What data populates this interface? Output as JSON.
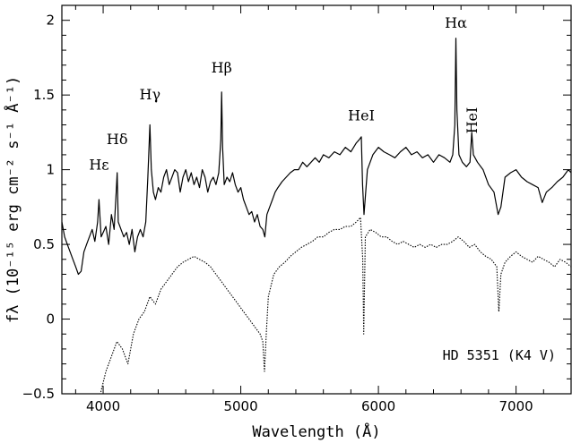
{
  "chart_data": {
    "type": "line",
    "title": "",
    "xlabel": "Wavelength (Å)",
    "ylabel": "fλ (10⁻¹⁵ erg cm⁻² s⁻¹ Å⁻¹)",
    "xlim": [
      3700,
      7400
    ],
    "ylim": [
      -0.5,
      2.1
    ],
    "x_ticks": [
      4000,
      5000,
      6000,
      7000
    ],
    "x_tick_labels": [
      "4000",
      "5000",
      "6000",
      "7000"
    ],
    "y_ticks": [
      -0.5,
      0,
      0.5,
      1,
      1.5,
      2
    ],
    "y_tick_labels": [
      "−0.5",
      "0",
      "0.5",
      "1",
      "1.5",
      "2"
    ],
    "grid": false,
    "annotation": "HD 5351 (K4 V)",
    "line_labels": [
      {
        "text": "Hε",
        "wavelength": 3970,
        "level": 1.0
      },
      {
        "text": "Hδ",
        "wavelength": 4102,
        "level": 1.17
      },
      {
        "text": "Hγ",
        "wavelength": 4340,
        "level": 1.47
      },
      {
        "text": "Hβ",
        "wavelength": 4861,
        "level": 1.65
      },
      {
        "text": "HeI",
        "wavelength": 5876,
        "level": 1.33
      },
      {
        "text": "Hα",
        "wavelength": 6563,
        "level": 1.95
      },
      {
        "text": "HeI",
        "wavelength": 6678,
        "level": 1.33,
        "rotated": true
      }
    ],
    "series": [
      {
        "style": "solid",
        "x": [
          3700,
          3720,
          3740,
          3760,
          3780,
          3800,
          3820,
          3840,
          3860,
          3880,
          3900,
          3920,
          3940,
          3960,
          3970,
          3985,
          4000,
          4020,
          4040,
          4060,
          4080,
          4095,
          4102,
          4110,
          4130,
          4150,
          4170,
          4190,
          4210,
          4230,
          4250,
          4270,
          4290,
          4310,
          4325,
          4340,
          4350,
          4365,
          4380,
          4400,
          4420,
          4440,
          4460,
          4480,
          4500,
          4520,
          4540,
          4560,
          4580,
          4600,
          4620,
          4640,
          4660,
          4680,
          4700,
          4720,
          4740,
          4760,
          4780,
          4800,
          4820,
          4840,
          4855,
          4861,
          4868,
          4880,
          4900,
          4920,
          4940,
          4960,
          4980,
          5000,
          5020,
          5040,
          5060,
          5080,
          5100,
          5120,
          5140,
          5160,
          5175,
          5190,
          5210,
          5230,
          5250,
          5270,
          5300,
          5330,
          5360,
          5390,
          5420,
          5450,
          5480,
          5510,
          5540,
          5570,
          5600,
          5640,
          5680,
          5720,
          5760,
          5800,
          5840,
          5860,
          5876,
          5885,
          5895,
          5920,
          5960,
          6000,
          6040,
          6080,
          6120,
          6160,
          6200,
          6240,
          6280,
          6320,
          6360,
          6400,
          6440,
          6480,
          6520,
          6540,
          6555,
          6563,
          6570,
          6585,
          6610,
          6640,
          6665,
          6678,
          6690,
          6720,
          6760,
          6800,
          6840,
          6870,
          6890,
          6920,
          6960,
          7000,
          7040,
          7080,
          7120,
          7160,
          7190,
          7220,
          7260,
          7300,
          7340,
          7380,
          7400
        ],
        "y": [
          0.65,
          0.55,
          0.5,
          0.45,
          0.4,
          0.35,
          0.3,
          0.32,
          0.45,
          0.5,
          0.55,
          0.6,
          0.52,
          0.65,
          0.8,
          0.55,
          0.58,
          0.62,
          0.5,
          0.7,
          0.6,
          0.85,
          0.98,
          0.65,
          0.6,
          0.55,
          0.58,
          0.5,
          0.6,
          0.45,
          0.55,
          0.6,
          0.55,
          0.65,
          0.95,
          1.3,
          1.0,
          0.85,
          0.8,
          0.88,
          0.85,
          0.95,
          1.0,
          0.9,
          0.95,
          1.0,
          0.98,
          0.85,
          0.95,
          1.0,
          0.92,
          0.98,
          0.9,
          0.95,
          0.88,
          1.0,
          0.95,
          0.85,
          0.92,
          0.95,
          0.9,
          0.98,
          1.2,
          1.52,
          1.15,
          0.9,
          0.95,
          0.92,
          0.98,
          0.9,
          0.85,
          0.88,
          0.8,
          0.75,
          0.7,
          0.72,
          0.65,
          0.7,
          0.62,
          0.6,
          0.55,
          0.7,
          0.75,
          0.8,
          0.85,
          0.88,
          0.92,
          0.95,
          0.98,
          1.0,
          1.0,
          1.05,
          1.02,
          1.05,
          1.08,
          1.05,
          1.1,
          1.08,
          1.12,
          1.1,
          1.15,
          1.12,
          1.18,
          1.2,
          1.22,
          0.9,
          0.7,
          1.0,
          1.1,
          1.15,
          1.12,
          1.1,
          1.08,
          1.12,
          1.15,
          1.1,
          1.12,
          1.08,
          1.1,
          1.05,
          1.1,
          1.08,
          1.05,
          1.1,
          1.3,
          1.88,
          1.4,
          1.1,
          1.05,
          1.02,
          1.05,
          1.25,
          1.1,
          1.05,
          1.0,
          0.9,
          0.85,
          0.7,
          0.75,
          0.95,
          0.98,
          1.0,
          0.95,
          0.92,
          0.9,
          0.88,
          0.78,
          0.85,
          0.88,
          0.92,
          0.95,
          1.0,
          0.98
        ]
      },
      {
        "style": "dotted",
        "x": [
          3700,
          3740,
          3780,
          3820,
          3860,
          3900,
          3940,
          3980,
          4020,
          4060,
          4100,
          4140,
          4180,
          4220,
          4260,
          4300,
          4340,
          4380,
          4420,
          4460,
          4500,
          4540,
          4580,
          4620,
          4660,
          4700,
          4740,
          4780,
          4820,
          4860,
          4900,
          4940,
          4980,
          5020,
          5060,
          5100,
          5140,
          5160,
          5172,
          5185,
          5200,
          5240,
          5280,
          5320,
          5360,
          5400,
          5440,
          5480,
          5520,
          5560,
          5600,
          5640,
          5680,
          5720,
          5760,
          5800,
          5840,
          5870,
          5886,
          5893,
          5905,
          5940,
          5980,
          6020,
          6060,
          6100,
          6140,
          6180,
          6220,
          6260,
          6300,
          6340,
          6380,
          6420,
          6460,
          6500,
          6540,
          6580,
          6620,
          6660,
          6700,
          6740,
          6780,
          6820,
          6860,
          6875,
          6890,
          6920,
          6960,
          7000,
          7040,
          7080,
          7120,
          7160,
          7200,
          7240,
          7280,
          7320,
          7360,
          7400
        ],
        "y": [
          -0.5,
          -0.5,
          -0.5,
          -0.5,
          -0.5,
          -0.5,
          -0.5,
          -0.5,
          -0.35,
          -0.25,
          -0.15,
          -0.2,
          -0.3,
          -0.1,
          0.0,
          0.05,
          0.15,
          0.1,
          0.2,
          0.25,
          0.3,
          0.35,
          0.38,
          0.4,
          0.42,
          0.4,
          0.38,
          0.35,
          0.3,
          0.25,
          0.2,
          0.15,
          0.1,
          0.05,
          0.0,
          -0.05,
          -0.1,
          -0.15,
          -0.35,
          -0.1,
          0.15,
          0.3,
          0.35,
          0.38,
          0.42,
          0.45,
          0.48,
          0.5,
          0.52,
          0.55,
          0.55,
          0.58,
          0.6,
          0.6,
          0.62,
          0.62,
          0.65,
          0.68,
          0.4,
          -0.1,
          0.55,
          0.6,
          0.58,
          0.55,
          0.55,
          0.52,
          0.5,
          0.52,
          0.5,
          0.48,
          0.5,
          0.48,
          0.5,
          0.48,
          0.5,
          0.5,
          0.52,
          0.55,
          0.52,
          0.48,
          0.5,
          0.45,
          0.42,
          0.4,
          0.35,
          0.05,
          0.3,
          0.38,
          0.42,
          0.45,
          0.42,
          0.4,
          0.38,
          0.42,
          0.4,
          0.38,
          0.35,
          0.4,
          0.38,
          0.35
        ]
      }
    ]
  }
}
